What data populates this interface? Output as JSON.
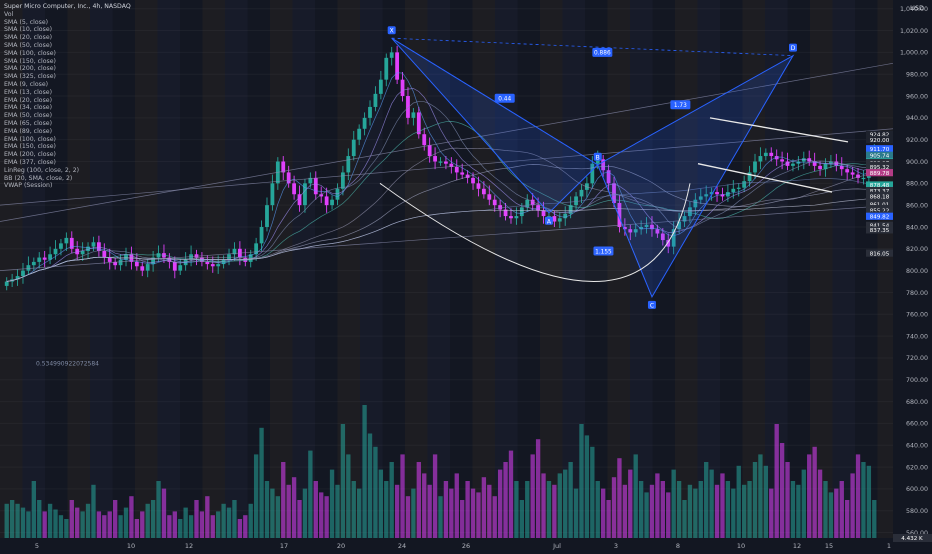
{
  "header": {
    "title": "Super Micro Computer, Inc., 4h, NASDAQ",
    "vol_label": "Vol",
    "currency": "USD"
  },
  "indicators": [
    "SMA (5, close)",
    "SMA (10, close)",
    "SMA (20, close)",
    "SMA (50, close)",
    "SMA (100, close)",
    "SMA (150, close)",
    "SMA (200, close)",
    "SMA (325, close)",
    "EMA (9, close)",
    "EMA (13, close)",
    "EMA (20, close)",
    "EMA (34, close)",
    "EMA (50, close)",
    "EMA (65, close)",
    "EMA (89, close)",
    "EMA (100, close)",
    "EMA (150, close)",
    "EMA (200, close)",
    "EMA (377, close)",
    "LinReg (100, close, 2, 2)",
    "BB (20, SMA, close, 2)",
    "VWAP (Session)"
  ],
  "pattern": {
    "points": [
      "X",
      "A",
      "B",
      "C",
      "D"
    ],
    "ratios": [
      "0.44",
      "0.886",
      "1.73",
      "1.155"
    ],
    "side_value": "0.534990922072584"
  },
  "price_axis": {
    "ticks": [
      "1,040.00",
      "1,020.00",
      "1,000.00",
      "980.00",
      "960.00",
      "940.00",
      "920.00",
      "900.00",
      "880.00",
      "860.00",
      "840.00",
      "820.00",
      "800.00",
      "780.00",
      "760.00",
      "740.00",
      "720.00",
      "700.00",
      "680.00",
      "660.00",
      "640.00",
      "620.00",
      "600.00",
      "580.00",
      "560.00"
    ],
    "labels": [
      {
        "text": "924.82",
        "bg": "#1e222d"
      },
      {
        "text": "920.00",
        "bg": "#1e222d"
      },
      {
        "text": "911.70",
        "bg": "#2962ff"
      },
      {
        "text": "905.74",
        "bg": "#2b7a8a"
      },
      {
        "text": "899.70",
        "bg": "#26a69a"
      },
      {
        "text": "898.97",
        "bg": "#2a2e39"
      },
      {
        "text": "896.60",
        "bg": "#2a2e39"
      },
      {
        "text": "895.63",
        "bg": "#2a2e39"
      },
      {
        "text": "895.32",
        "bg": "#2a2e39"
      },
      {
        "text": "889.78",
        "bg": "#b33c86"
      },
      {
        "text": "878.48",
        "bg": "#26a69a"
      },
      {
        "text": "873.13",
        "bg": "#2a2e39"
      },
      {
        "text": "873.37",
        "bg": "#2a2e39"
      },
      {
        "text": "868.97",
        "bg": "#2a2e39"
      },
      {
        "text": "868.18",
        "bg": "#2a2e39"
      },
      {
        "text": "862.73",
        "bg": "#2a2e39"
      },
      {
        "text": "862.41",
        "bg": "#2a2e39"
      },
      {
        "text": "861.01",
        "bg": "#2a2e39"
      },
      {
        "text": "856.83",
        "bg": "#2a2e39"
      },
      {
        "text": "855.22",
        "bg": "#2a2e39"
      },
      {
        "text": "850.97",
        "bg": "#2a2e39"
      },
      {
        "text": "849.82",
        "bg": "#2962ff"
      },
      {
        "text": "841.54",
        "bg": "#2a2e39"
      },
      {
        "text": "837.35",
        "bg": "#2a2e39"
      },
      {
        "text": "816.05",
        "bg": "#2a2e39"
      }
    ],
    "volume_label": "4.432 K"
  },
  "time_axis": [
    "5",
    "10",
    "12",
    "17",
    "20",
    "24",
    "26",
    "Jul",
    "3",
    "8",
    "10",
    "12",
    "15",
    "1"
  ],
  "colors": {
    "up": "#26a69a",
    "down": "#e040fb",
    "xabcd": "#2962ff",
    "background": "#131722"
  },
  "chart_data": {
    "type": "candlestick",
    "title": "Super Micro Computer, Inc., 4h, NASDAQ",
    "ylim": [
      555,
      1048
    ],
    "x_tick_labels": [
      "5",
      "10",
      "12",
      "17",
      "20",
      "24",
      "26",
      "Jul",
      "3",
      "8",
      "10",
      "12",
      "15",
      "1"
    ],
    "candles_approx_close": [
      790,
      792,
      795,
      800,
      805,
      808,
      812,
      810,
      815,
      820,
      825,
      830,
      820,
      815,
      818,
      822,
      826,
      818,
      812,
      808,
      805,
      810,
      815,
      808,
      804,
      800,
      806,
      812,
      816,
      812,
      808,
      800,
      805,
      810,
      815,
      812,
      808,
      806,
      804,
      806,
      810,
      815,
      820,
      812,
      808,
      815,
      825,
      840,
      860,
      880,
      900,
      890,
      880,
      870,
      860,
      880,
      885,
      870,
      868,
      860,
      865,
      875,
      890,
      905,
      920,
      930,
      940,
      950,
      962,
      975,
      995,
      1000,
      975,
      960,
      940,
      945,
      925,
      915,
      905,
      900,
      900,
      898,
      895,
      890,
      888,
      885,
      880,
      875,
      870,
      865,
      860,
      856,
      850,
      848,
      850,
      858,
      865,
      860,
      855,
      850,
      850,
      845,
      848,
      852,
      860,
      868,
      874,
      880,
      898,
      902,
      892,
      880,
      862,
      840,
      838,
      835,
      838,
      840,
      842,
      838,
      834,
      828,
      822,
      838,
      845,
      850,
      858,
      865,
      868,
      870,
      872,
      870,
      868,
      872,
      875,
      876,
      882,
      890,
      900,
      905,
      908,
      905,
      902,
      900,
      896,
      898,
      900,
      903,
      900,
      896,
      893,
      898,
      900,
      896,
      893,
      890,
      888,
      885,
      885,
      903,
      912
    ],
    "volume_approx": [
      18,
      20,
      18,
      16,
      14,
      30,
      20,
      14,
      18,
      15,
      12,
      10,
      20,
      16,
      14,
      18,
      28,
      14,
      12,
      14,
      20,
      12,
      16,
      22,
      10,
      14,
      18,
      20,
      30,
      26,
      12,
      14,
      10,
      16,
      12,
      20,
      14,
      22,
      12,
      14,
      18,
      16,
      20,
      10,
      12,
      18,
      44,
      58,
      30,
      26,
      22,
      40,
      28,
      32,
      20,
      26,
      46,
      30,
      24,
      22,
      36,
      28,
      60,
      44,
      30,
      26,
      70,
      55,
      48,
      36,
      30,
      40,
      28,
      44,
      22,
      26,
      40,
      34,
      28,
      44,
      22,
      30,
      26,
      34,
      20,
      30,
      26,
      24,
      32,
      28,
      22,
      36,
      40,
      46,
      30,
      20,
      30,
      44,
      52,
      34,
      30,
      28,
      34,
      36,
      40,
      26,
      60,
      54,
      48,
      30,
      26,
      20,
      32,
      42,
      28,
      36,
      44,
      30,
      24,
      28,
      34,
      30,
      24,
      36,
      30,
      20,
      28,
      26,
      30,
      40,
      36,
      28,
      34,
      30,
      26,
      38,
      28,
      30,
      40,
      44,
      38,
      26,
      60,
      50,
      40,
      30,
      28,
      36,
      44,
      48,
      36,
      30,
      24,
      26,
      30,
      20,
      34,
      44,
      40,
      38,
      20
    ],
    "xabcd_prices": {
      "X": 1013,
      "A": 853,
      "B": 897,
      "C": 776,
      "D": 997
    },
    "trend_resistance": [
      925,
      912
    ],
    "trend_support": [
      898,
      882
    ]
  }
}
